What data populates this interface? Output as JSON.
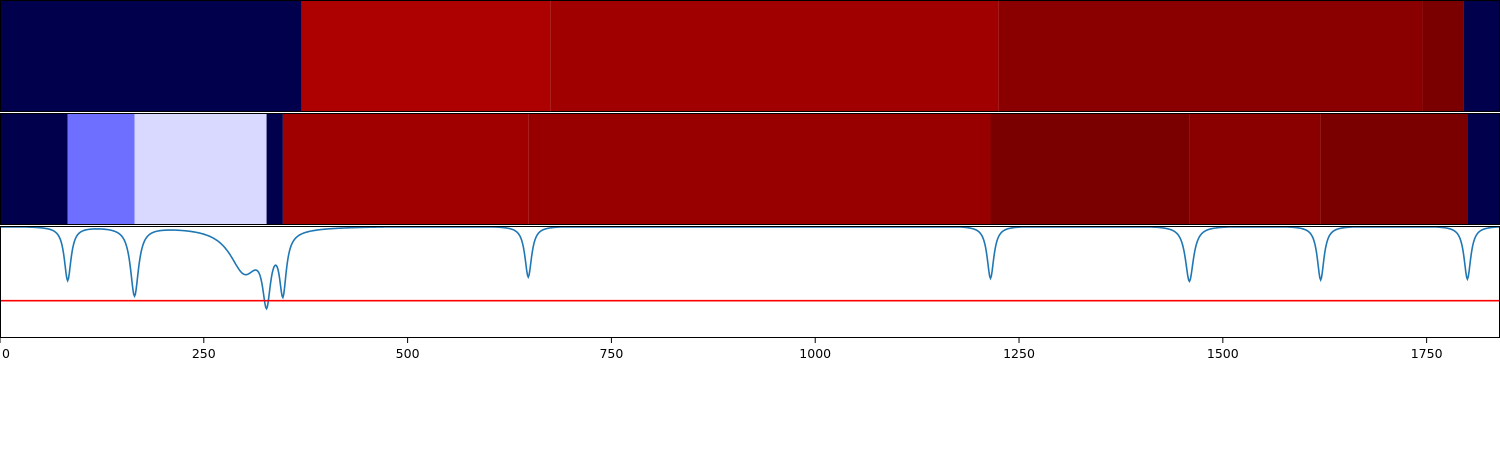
{
  "chart_data": {
    "type": "heatmap",
    "xlim": [
      0,
      1840
    ],
    "x_ticks": [
      0,
      250,
      500,
      750,
      1000,
      1250,
      1500,
      1750
    ],
    "x_tick_labels": [
      "0",
      "250",
      "500",
      "750",
      "1000",
      "1250",
      "1500",
      "1750"
    ],
    "grid": false,
    "legend": "none",
    "colors": {
      "line": "#1f77b4",
      "threshold_line": "#ff0000",
      "frame": "#000000"
    },
    "panels": [
      {
        "type": "heatmap_strip",
        "segments": [
          {
            "start": 0,
            "end": 370,
            "color": "#00004c"
          },
          {
            "start": 370,
            "end": 675,
            "color": "#ad0000"
          },
          {
            "start": 675,
            "end": 1225,
            "color": "#a00000"
          },
          {
            "start": 1225,
            "end": 1745,
            "color": "#8a0000"
          },
          {
            "start": 1745,
            "end": 1795,
            "color": "#7a0000"
          },
          {
            "start": 1795,
            "end": 1840,
            "color": "#00004c"
          }
        ]
      },
      {
        "type": "heatmap_strip",
        "segments": [
          {
            "start": 0,
            "end": 83,
            "color": "#00004c"
          },
          {
            "start": 83,
            "end": 165,
            "color": "#6e6eff"
          },
          {
            "start": 165,
            "end": 327,
            "color": "#d9d9ff"
          },
          {
            "start": 327,
            "end": 347,
            "color": "#00004c"
          },
          {
            "start": 347,
            "end": 648,
            "color": "#a10000"
          },
          {
            "start": 648,
            "end": 1215,
            "color": "#980000"
          },
          {
            "start": 1215,
            "end": 1459,
            "color": "#7a0000"
          },
          {
            "start": 1459,
            "end": 1620,
            "color": "#8a0000"
          },
          {
            "start": 1620,
            "end": 1800,
            "color": "#7a0000"
          },
          {
            "start": 1800,
            "end": 1840,
            "color": "#00004c"
          }
        ]
      },
      {
        "type": "line",
        "ylim": [
          -1.5,
          0.0
        ],
        "baseline": 0.0,
        "threshold": -1.0,
        "dips": [
          {
            "x": 83,
            "depth": 0.72,
            "width": 5
          },
          {
            "x": 165,
            "depth": 0.92,
            "width": 6
          },
          {
            "x": 300,
            "depth": 0.6,
            "width": 22
          },
          {
            "x": 327,
            "depth": 0.82,
            "width": 6
          },
          {
            "x": 347,
            "depth": 0.78,
            "width": 5
          },
          {
            "x": 648,
            "depth": 0.68,
            "width": 5
          },
          {
            "x": 1215,
            "depth": 0.7,
            "width": 5
          },
          {
            "x": 1459,
            "depth": 0.74,
            "width": 6
          },
          {
            "x": 1620,
            "depth": 0.72,
            "width": 5
          },
          {
            "x": 1800,
            "depth": 0.71,
            "width": 5
          }
        ]
      }
    ]
  }
}
